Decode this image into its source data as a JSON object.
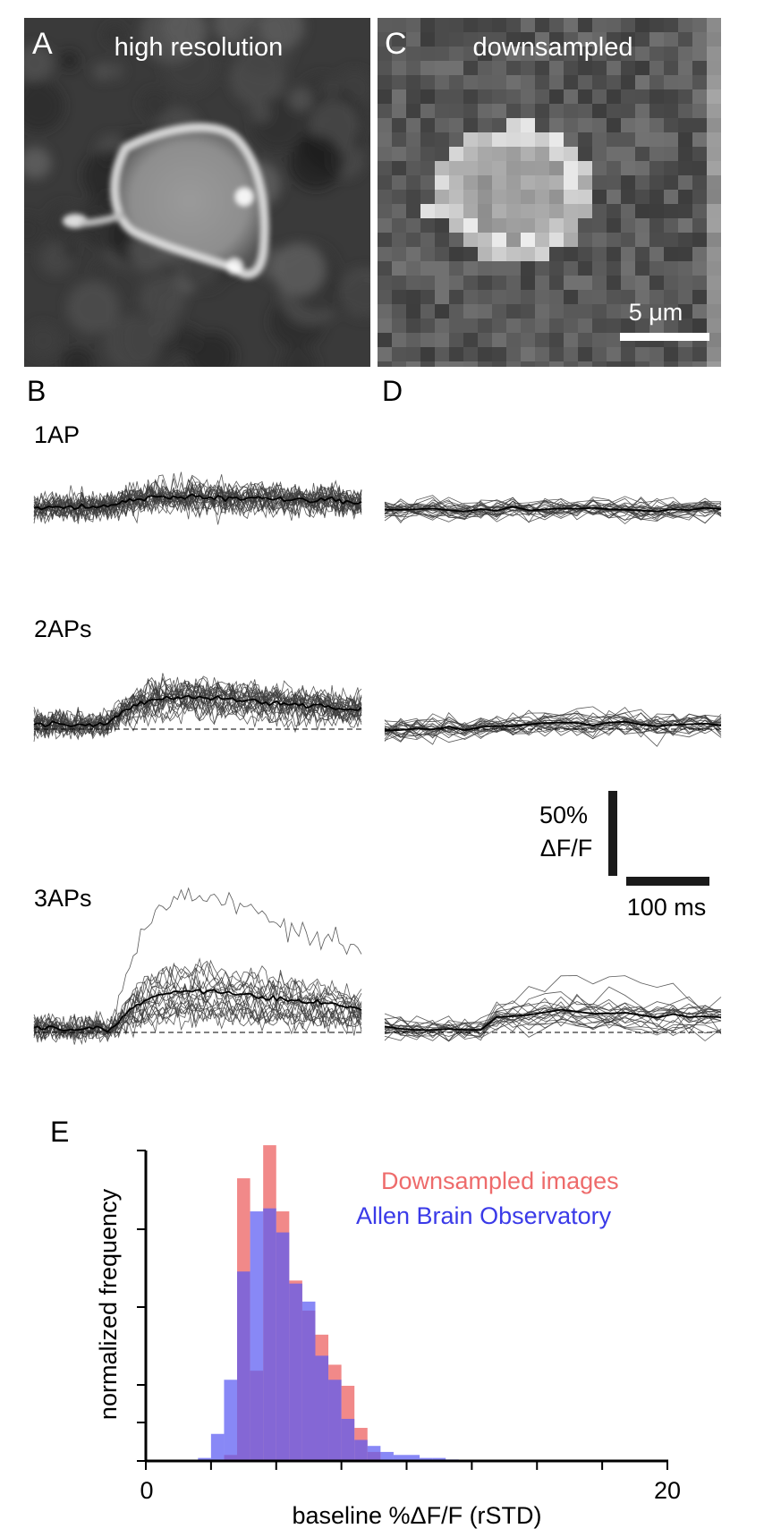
{
  "panels": {
    "a": {
      "letter": "A",
      "title": "high resolution"
    },
    "c": {
      "letter": "C",
      "title": "downsampled",
      "scalebar": "5 μm"
    },
    "b": {
      "letter": "B",
      "rows": [
        "1AP",
        "2APs",
        "3APs"
      ]
    },
    "d": {
      "letter": "D"
    },
    "e": {
      "letter": "E"
    }
  },
  "scalebars": {
    "vertical_top": "50%",
    "vertical_bottom": "ΔF/F",
    "horizontal": "100 ms"
  },
  "colors": {
    "downsampled": "#ee6b6b",
    "allen": "#5a5af2",
    "overlap": "#6a38b8",
    "trace": "#000000"
  },
  "chart_data": {
    "type": "bar",
    "title": "",
    "xlabel": "baseline %ΔF/F (rSTD)",
    "ylabel": "normalized frequency",
    "xlim": [
      0,
      20
    ],
    "xticks": [
      0,
      20
    ],
    "bin_width": 0.5,
    "legend_position": "top-right",
    "series": [
      {
        "name": "Downsampled images",
        "bin_starts": [
          3.0,
          3.5,
          4.0,
          4.5,
          5.0,
          5.5,
          6.0,
          6.5,
          7.0,
          7.5,
          8.0,
          8.5
        ],
        "values": [
          0.02,
          0.94,
          0.3,
          1.05,
          0.83,
          0.6,
          0.5,
          0.42,
          0.32,
          0.25,
          0.11,
          0.03
        ]
      },
      {
        "name": "Allen Brain Observatory",
        "bin_starts": [
          2.0,
          2.5,
          3.0,
          3.5,
          4.0,
          4.5,
          5.0,
          5.5,
          6.0,
          6.5,
          7.0,
          7.5,
          8.0,
          8.5,
          9.0,
          9.5,
          10.0,
          10.5,
          11.0,
          11.5,
          12.0
        ],
        "values": [
          0.01,
          0.09,
          0.27,
          0.63,
          0.83,
          0.84,
          0.76,
          0.59,
          0.53,
          0.35,
          0.27,
          0.14,
          0.07,
          0.05,
          0.03,
          0.02,
          0.02,
          0.01,
          0.01,
          0.005,
          0.003
        ]
      }
    ]
  }
}
